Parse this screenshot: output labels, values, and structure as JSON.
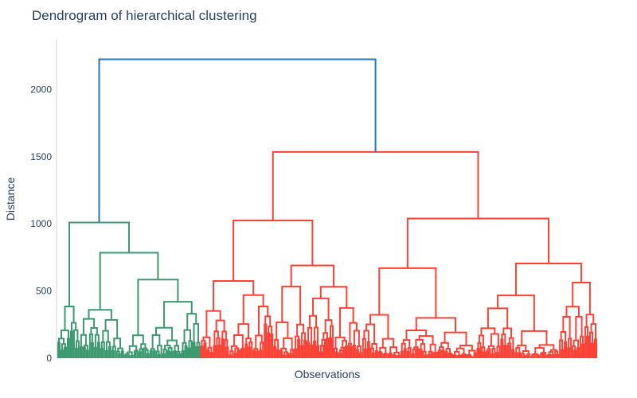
{
  "chart_data": {
    "type": "dendrogram",
    "title": "Dendrogram of hierarchical clustering",
    "xlabel": "Observations",
    "ylabel": "Distance",
    "ylim": [
      0,
      2370
    ],
    "yticks": [
      0,
      500,
      1000,
      1500,
      2000
    ],
    "grid": false,
    "legend": "none",
    "colors": {
      "root": "#1f77d0",
      "cluster_green": "#3d9970",
      "cluster_red": "#ff4136",
      "axis": "#d0d6e0",
      "text": "#2a3f5f"
    },
    "clusters": [
      {
        "name": "",
        "color_key": "cluster_green",
        "observations": 90,
        "merge_height": 1010,
        "subclusters": [
          {
            "merge_height": 385,
            "observations": 14
          },
          {
            "merge_height": 785,
            "observations": 76,
            "subclusters": [
              {
                "merge_height": 360,
                "observations": 28
              },
              {
                "merge_height": 585,
                "observations": 48,
                "subclusters": [
                  {
                    "merge_height": 170,
                    "observations": 16
                  },
                  {
                    "merge_height": 420,
                    "observations": 32
                  }
                ]
              }
            ]
          }
        ]
      },
      {
        "name": "",
        "color_key": "cluster_red",
        "observations": 250,
        "merge_height": 1535,
        "subclusters": [
          {
            "merge_height": 1025,
            "observations": 102,
            "subclusters": [
              {
                "merge_height": 575,
                "observations": 46
              },
              {
                "merge_height": 690,
                "observations": 56
              }
            ]
          },
          {
            "merge_height": 1040,
            "observations": 148,
            "subclusters": [
              {
                "merge_height": 670,
                "observations": 72
              },
              {
                "merge_height": 705,
                "observations": 76
              }
            ]
          }
        ]
      }
    ],
    "root_merge_height": 2225
  }
}
